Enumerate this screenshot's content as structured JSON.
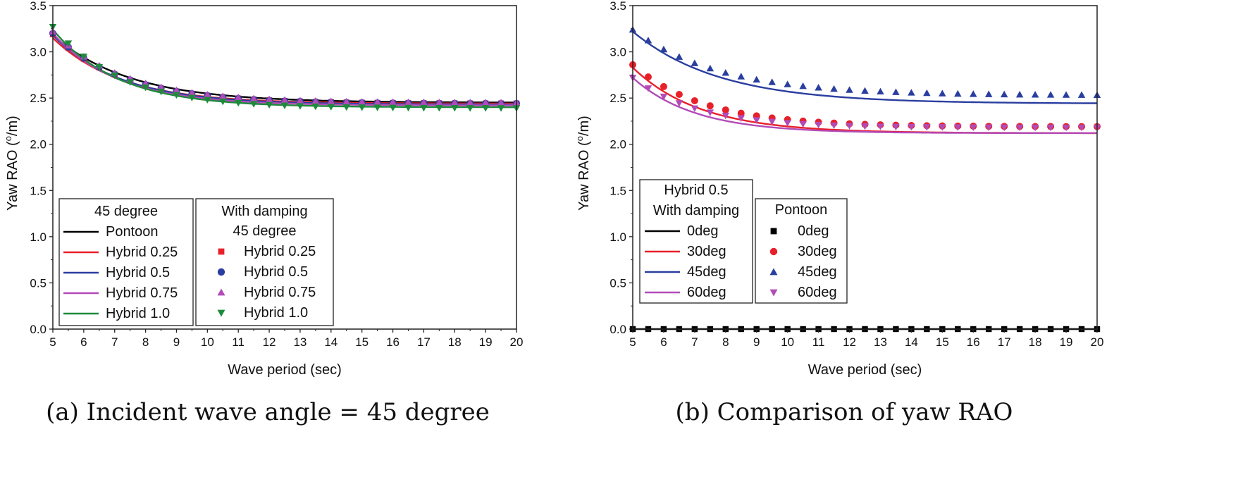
{
  "chart_data": [
    {
      "type": "line",
      "panel": "a",
      "caption": "(a) Incident wave angle = 45 degree",
      "xlabel": "Wave period (sec)",
      "ylabel_main": "Yaw RAO (",
      "ylabel_sup": "o",
      "ylabel_tail": "/m)",
      "xlim": [
        5,
        20
      ],
      "ylim": [
        0.0,
        3.5
      ],
      "xticks": [
        5,
        6,
        7,
        8,
        9,
        10,
        11,
        12,
        13,
        14,
        15,
        16,
        17,
        18,
        19,
        20
      ],
      "yticks": [
        "0.0",
        "0.5",
        "1.0",
        "1.5",
        "2.0",
        "2.5",
        "3.0",
        "3.5"
      ],
      "grid": false,
      "legend_placement": "bottom-left",
      "line_legend_title": [
        "45 degree"
      ],
      "marker_legend_title": [
        "With damping",
        "45 degree"
      ],
      "lines": [
        {
          "name": "Pontoon",
          "color": "#000000",
          "y0": 3.18,
          "yinf": 2.45,
          "tau": 2.5
        },
        {
          "name": "Hybrid 0.25",
          "color": "#e8202a",
          "y0": 3.15,
          "yinf": 2.44,
          "tau": 2.2
        },
        {
          "name": "Hybrid 0.5",
          "color": "#2a3ea0",
          "y0": 3.18,
          "yinf": 2.43,
          "tau": 2.2
        },
        {
          "name": "Hybrid 0.75",
          "color": "#b24bb8",
          "y0": 3.2,
          "yinf": 2.42,
          "tau": 2.1
        },
        {
          "name": "Hybrid 1.0",
          "color": "#1e8a3c",
          "y0": 3.24,
          "yinf": 2.4,
          "tau": 2.1
        }
      ],
      "markers": [
        {
          "name": "Hybrid 0.25",
          "color": "#e8202a",
          "shape": "square",
          "y0": 3.19,
          "yinf": 2.44,
          "tau": 2.3
        },
        {
          "name": "Hybrid 0.5",
          "color": "#2a3ea0",
          "shape": "circle",
          "y0": 3.2,
          "yinf": 2.44,
          "tau": 2.3
        },
        {
          "name": "Hybrid 0.75",
          "color": "#b24bb8",
          "shape": "triangle-up",
          "y0": 3.22,
          "yinf": 2.45,
          "tau": 2.3
        },
        {
          "name": "Hybrid 1.0",
          "color": "#1e8a3c",
          "shape": "triangle-down",
          "y0": 3.27,
          "yinf": 2.39,
          "tau": 2.2
        }
      ]
    },
    {
      "type": "line",
      "panel": "b",
      "caption": "(b) Comparison of yaw RAO",
      "xlabel": "Wave period (sec)",
      "ylabel_main": "Yaw RAO (",
      "ylabel_sup": "o",
      "ylabel_tail": "/m)",
      "xlim": [
        5,
        20
      ],
      "ylim": [
        0.0,
        3.5
      ],
      "xticks": [
        5,
        6,
        7,
        8,
        9,
        10,
        11,
        12,
        13,
        14,
        15,
        16,
        17,
        18,
        19,
        20
      ],
      "yticks": [
        "0.0",
        "0.5",
        "1.0",
        "1.5",
        "2.0",
        "2.5",
        "3.0",
        "3.5"
      ],
      "grid": false,
      "legend_placement": "bottom-left",
      "line_legend_title": [
        "Hybrid 0.5",
        "With damping"
      ],
      "marker_legend_title": [
        "Pontoon"
      ],
      "lines": [
        {
          "name": "0deg",
          "color": "#000000",
          "y0": 0.0,
          "yinf": 0.0,
          "tau": 2.0
        },
        {
          "name": "30deg",
          "color": "#e8202a",
          "y0": 2.83,
          "yinf": 2.12,
          "tau": 2.2
        },
        {
          "name": "45deg",
          "color": "#2a3ea0",
          "y0": 3.22,
          "yinf": 2.44,
          "tau": 2.8
        },
        {
          "name": "60deg",
          "color": "#b24bb8",
          "y0": 2.72,
          "yinf": 2.12,
          "tau": 2.0
        }
      ],
      "markers": [
        {
          "name": "0deg",
          "color": "#000000",
          "shape": "square",
          "y0": 0.0,
          "yinf": 0.0,
          "tau": 2.0
        },
        {
          "name": "30deg",
          "color": "#e8202a",
          "shape": "circle",
          "y0": 2.86,
          "yinf": 2.19,
          "tau": 2.3
        },
        {
          "name": "45deg",
          "color": "#2a3ea0",
          "shape": "triangle-up",
          "y0": 3.24,
          "yinf": 2.53,
          "tau": 2.8
        },
        {
          "name": "60deg",
          "color": "#b24bb8",
          "shape": "triangle-down",
          "y0": 2.72,
          "yinf": 2.18,
          "tau": 2.1
        }
      ]
    }
  ]
}
